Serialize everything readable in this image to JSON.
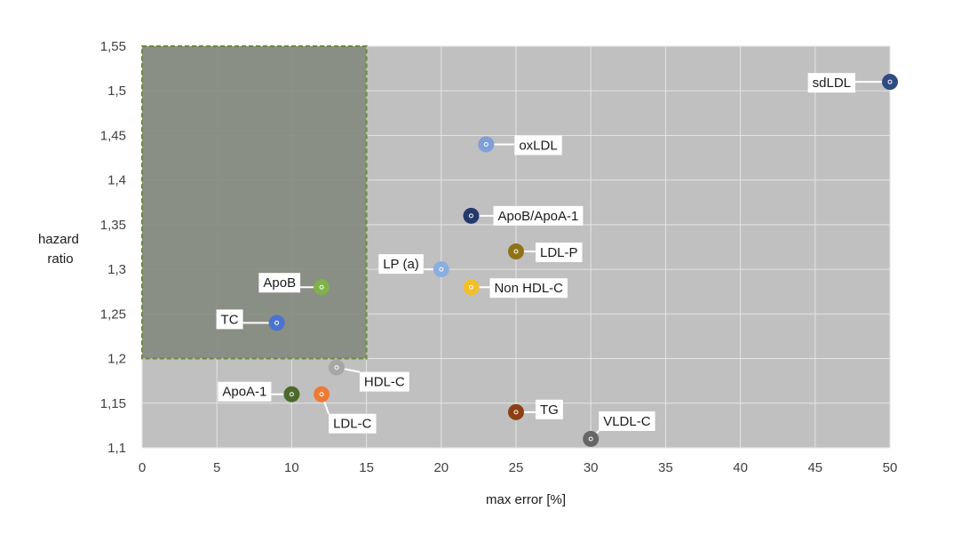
{
  "chart_data": {
    "type": "scatter",
    "title": "",
    "xlabel": "max error [%]",
    "ylabel": [
      "hazard",
      "ratio"
    ],
    "xlim": [
      0,
      50
    ],
    "ylim": [
      1.1,
      1.55
    ],
    "xticks": [
      0,
      5,
      10,
      15,
      20,
      25,
      30,
      35,
      40,
      45,
      50
    ],
    "yticks": [
      1.1,
      1.15,
      1.2,
      1.25,
      1.3,
      1.35,
      1.4,
      1.45,
      1.5,
      1.55
    ],
    "xtick_labels": [
      "0",
      "5",
      "10",
      "15",
      "20",
      "25",
      "30",
      "35",
      "40",
      "45",
      "50"
    ],
    "ytick_labels": [
      "1,1",
      "1,15",
      "1,2",
      "1,25",
      "1,3",
      "1,35",
      "1,4",
      "1,45",
      "1,5",
      "1,55"
    ],
    "grid": true,
    "legend": "none",
    "plot_background": "#c0c0c0",
    "grid_color": "#e4e4e4",
    "highlight_region": {
      "x": [
        0,
        15
      ],
      "y": [
        1.2,
        1.55
      ],
      "fill": "#868b80",
      "border_color": "#6a8a3e",
      "border_style": "dashed"
    },
    "points": [
      {
        "label": "sdLDL",
        "x": 50,
        "y": 1.51,
        "color": "#2e4c82"
      },
      {
        "label": "oxLDL",
        "x": 23,
        "y": 1.44,
        "color": "#7f9fd6"
      },
      {
        "label": "ApoB/ApoA-1",
        "x": 22,
        "y": 1.36,
        "color": "#24386a"
      },
      {
        "label": "LDL-P",
        "x": 25,
        "y": 1.32,
        "color": "#8f7216"
      },
      {
        "label": "LP (a)",
        "x": 20,
        "y": 1.3,
        "color": "#8aaee0"
      },
      {
        "label": "Non HDL-C",
        "x": 22,
        "y": 1.28,
        "color": "#f1be2c"
      },
      {
        "label": "ApoB",
        "x": 12,
        "y": 1.28,
        "color": "#7fb24a"
      },
      {
        "label": "TC",
        "x": 9,
        "y": 1.24,
        "color": "#4a74cf"
      },
      {
        "label": "HDL-C",
        "x": 13,
        "y": 1.19,
        "color": "#a6a6a6"
      },
      {
        "label": "ApoA-1",
        "x": 10,
        "y": 1.16,
        "color": "#4c6a2a"
      },
      {
        "label": "LDL-C",
        "x": 12,
        "y": 1.16,
        "color": "#ec7b34"
      },
      {
        "label": "TG",
        "x": 25,
        "y": 1.14,
        "color": "#8c3f12"
      },
      {
        "label": "VLDL-C",
        "x": 30,
        "y": 1.11,
        "color": "#666666"
      }
    ]
  }
}
